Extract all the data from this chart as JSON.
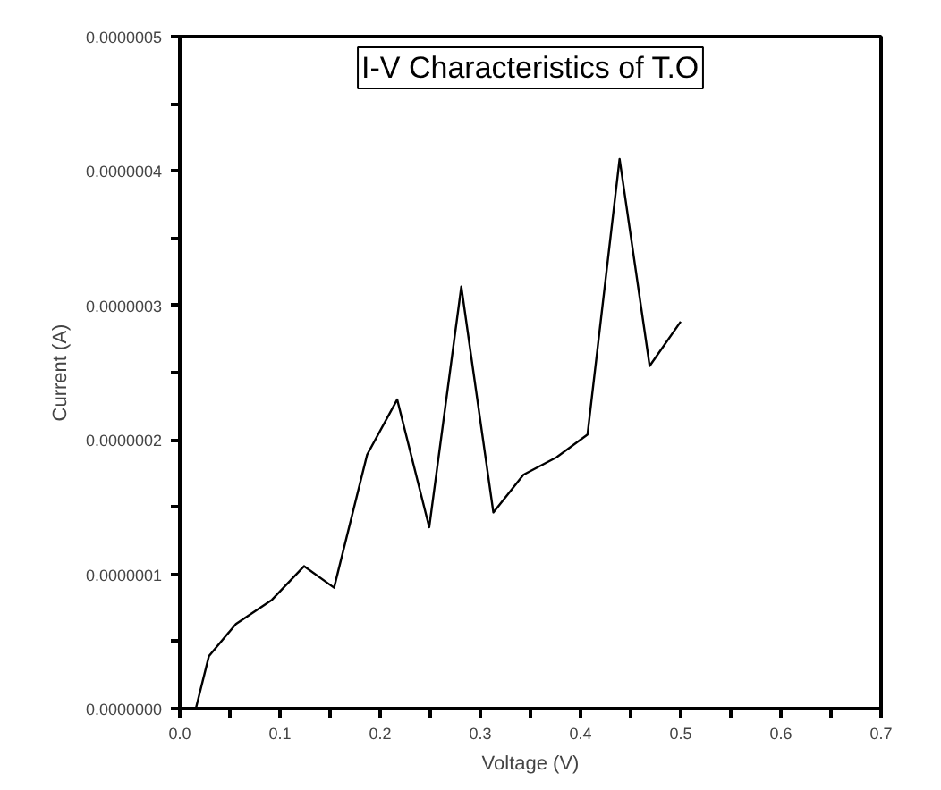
{
  "chart_data": {
    "type": "line",
    "title": "I-V Characteristics of T.O",
    "xlabel": "Voltage (V)",
    "ylabel": "Current (A)",
    "x": [
      0.016,
      0.029,
      0.056,
      0.092,
      0.124,
      0.154,
      0.187,
      0.217,
      0.249,
      0.281,
      0.313,
      0.343,
      0.376,
      0.407,
      0.439,
      0.469,
      0.5
    ],
    "series": [
      {
        "color": "#000000",
        "values": [
          0.0,
          3.9e-08,
          6.3e-08,
          8.1e-08,
          1.06e-07,
          9e-08,
          1.89e-07,
          2.3e-07,
          1.35e-07,
          3.14e-07,
          1.46e-07,
          1.74e-07,
          1.87e-07,
          2.04e-07,
          4.09e-07,
          2.55e-07,
          2.88e-07
        ]
      }
    ],
    "xlim": [
      0,
      0.7
    ],
    "ylim": [
      0,
      5e-07
    ],
    "xticks": [
      {
        "value": 0,
        "label": "0.0"
      },
      {
        "value": 0.05,
        "label": null
      },
      {
        "value": 0.1,
        "label": "0.1"
      },
      {
        "value": 0.15,
        "label": null
      },
      {
        "value": 0.2,
        "label": "0.2"
      },
      {
        "value": 0.25,
        "label": null
      },
      {
        "value": 0.3,
        "label": "0.3"
      },
      {
        "value": 0.35,
        "label": null
      },
      {
        "value": 0.4,
        "label": "0.4"
      },
      {
        "value": 0.45,
        "label": null
      },
      {
        "value": 0.5,
        "label": "0.5"
      },
      {
        "value": 0.55,
        "label": null
      },
      {
        "value": 0.6,
        "label": "0.6"
      },
      {
        "value": 0.65,
        "label": null
      },
      {
        "value": 0.7,
        "label": "0.7"
      }
    ],
    "yticks": [
      {
        "value": 0,
        "label": "0.0000000"
      },
      {
        "value": 5e-08,
        "label": null
      },
      {
        "value": 1e-07,
        "label": "0.0000001"
      },
      {
        "value": 1.5e-07,
        "label": null
      },
      {
        "value": 2e-07,
        "label": "0.0000002"
      },
      {
        "value": 2.5e-07,
        "label": null
      },
      {
        "value": 3e-07,
        "label": "0.0000003"
      },
      {
        "value": 3.5e-07,
        "label": null
      },
      {
        "value": 4e-07,
        "label": "0.0000004"
      },
      {
        "value": 4.5e-07,
        "label": null
      },
      {
        "value": 5e-07,
        "label": "0.0000005"
      }
    ],
    "grid": false,
    "marker": "none",
    "line_style": "solid"
  }
}
